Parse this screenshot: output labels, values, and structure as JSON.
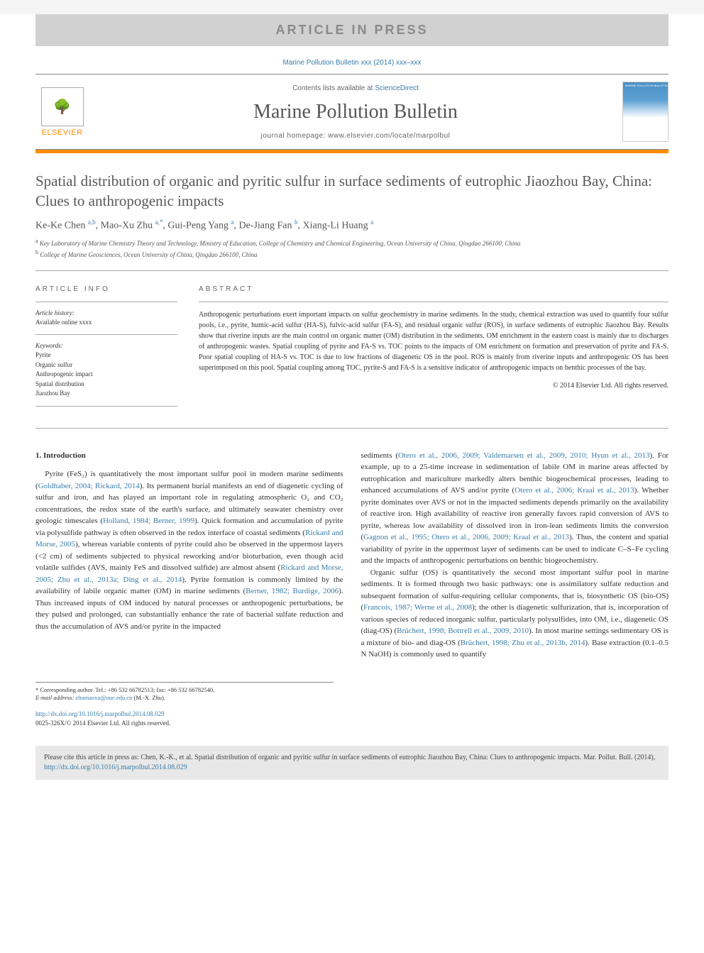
{
  "banner": {
    "text": "ARTICLE IN PRESS"
  },
  "citation_header": "Marine Pollution Bulletin xxx (2014) xxx–xxx",
  "header": {
    "contents_prefix": "Contents lists available at ",
    "contents_link": "ScienceDirect",
    "journal": "Marine Pollution Bulletin",
    "homepage": "journal homepage: www.elsevier.com/locate/marpolbul",
    "publisher": "ELSEVIER"
  },
  "title": "Spatial distribution of organic and pyritic sulfur in surface sediments of eutrophic Jiaozhou Bay, China: Clues to anthropogenic impacts",
  "authors_html": "Ke-Ke Chen <sup>a,b</sup>, Mao-Xu Zhu <sup>a,*</sup>, Gui-Peng Yang <sup>a</sup>, De-Jiang Fan <sup>b</sup>, Xiang-Li Huang <sup>a</sup>",
  "affiliations": {
    "a": "Key Laboratory of Marine Chemistry Theory and Technology, Ministry of Education, College of Chemistry and Chemical Engineering, Ocean University of China, Qingdao 266100, China",
    "b": "College of Marine Geosciences, Ocean University of China, Qingdao 266100, China"
  },
  "article_info": {
    "heading": "ARTICLE INFO",
    "history_label": "Article history:",
    "history_text": "Available online xxxx",
    "keywords_label": "Keywords:",
    "keywords": [
      "Pyrite",
      "Organic sulfur",
      "Anthropogenic impact",
      "Spatial distribution",
      "Jiaozhou Bay"
    ]
  },
  "abstract": {
    "heading": "ABSTRACT",
    "text": "Anthropogenic perturbations exert important impacts on sulfur geochemistry in marine sediments. In the study, chemical extraction was used to quantify four sulfur pools, i.e., pyrite, humic-acid sulfur (HA-S), fulvic-acid sulfur (FA-S), and residual organic sulfur (ROS), in surface sediments of eutrophic Jiaozhou Bay. Results show that riverine inputs are the main control on organic matter (OM) distribution in the sediments. OM enrichment in the eastern coast is mainly due to discharges of anthropogenic wastes. Spatial coupling of pyrite and FA-S vs. TOC points to the impacts of OM enrichment on formation and preservation of pyrite and FA-S. Poor spatial coupling of HA-S vs. TOC is due to low fractions of diagenetic OS in the pool. ROS is mainly from riverine inputs and anthropogenic OS has been superimposed on this pool. Spatial coupling among TOC, pyrite-S and FA-S is a sensitive indicator of anthropogenic impacts on benthic processes of the bay.",
    "copyright": "© 2014 Elsevier Ltd. All rights reserved."
  },
  "body": {
    "section1_heading": "1. Introduction",
    "col1_p1_parts": [
      "Pyrite (FeS₂) is quantitatively the most important sulfur pool in modern marine sediments (",
      "Goldhaber, 2004; Rickard, 2014",
      "). Its permanent burial manifests an end of diagenetic cycling of sulfur and iron, and has played an important role in regulating atmospheric O₂ and CO₂ concentrations, the redox state of the earth's surface, and ultimately seawater chemistry over geologic timescales (",
      "Holland, 1984; Berner, 1999",
      "). Quick formation and accumulation of pyrite via polysulfide pathway is often observed in the redox interface of coastal sediments (",
      "Rickard and Morse, 2005",
      "), whereas variable contents of pyrite could also be observed in the uppermost layers (<2 cm) of sediments subjected to physical reworking and/or bioturbation, even though acid volatile sulfides (AVS, mainly FeS and dissolved sulfide) are almost absent (",
      "Rickard and Morse, 2005; Zhu et al., 2013a; Ding et al., 2014",
      "). Pyrite formation is commonly limited by the availability of labile organic matter (OM) in marine sediments (",
      "Berner, 1982; Burdige, 2006",
      "). Thus increased inputs of OM induced by natural processes or anthropogenic perturbations, be they pulsed and prolonged, can substantially enhance the rate of bacterial sulfate reduction and thus the accumulation of AVS and/or pyrite in the impacted"
    ],
    "col2_p1_parts": [
      "sediments (",
      "Otero et al., 2006, 2009; Valdemarsen et al., 2009, 2010; Hyun et al., 2013",
      "). For example, up to a 25-time increase in sedimentation of labile OM in marine areas affected by eutrophication and mariculture markedly alters benthic biogeochemical processes, leading to enhanced accumulations of AVS and/or pyrite (",
      "Otero et al., 2006; Kraal et al., 2013",
      "). Whether pyrite dominates over AVS or not in the impacted sediments depends primarily on the availability of reactive iron. High availability of reactive iron generally favors rapid conversion of AVS to pyrite, whereas low availability of dissolved iron in iron-lean sediments limits the conversion (",
      "Gagnon et al., 1995; Otero et al., 2006, 2009; Kraal et al., 2013",
      "). Thus, the content and spatial variability of pyrite in the uppermost layer of sediments can be used to indicate C–S–Fe cycling and the impacts of anthropogenic perturbations on benthic biogeochemistry."
    ],
    "col2_p2_parts": [
      "Organic sulfur (OS) is quantitatively the second most important sulfur pool in marine sediments. It is formed through two basic pathways: one is assimilatory sulfate reduction and subsequent formation of sulfur-requiring cellular components, that is, biosynthetic OS (bio-OS) (",
      "Francois, 1987; Werne et al., 2008",
      "); the other is diagenetic sulfurization, that is, incorporation of various species of reduced inorganic sulfur, particularly polysulfides, into OM, i.e., diagenetic OS (diag-OS) (",
      "Brüchert, 1998; Bottrell et al., 2009, 2010",
      "). In most marine settings sedimentary OS is a mixture of bio- and diag-OS (",
      "Brüchert, 1998; Zhu et al., 2013b, 2014",
      "). Base extraction (0.1–0.5 N NaOH) is commonly used to quantify"
    ]
  },
  "footnote": {
    "corresponding": "* Corresponding author. Tel.: +86 532 66782513; fax: +86 532 66782540.",
    "email_label": "E-mail address: ",
    "email": "zhumaoxu@ouc.edu.cn",
    "email_suffix": " (M.-X. Zhu)."
  },
  "doi": {
    "url": "http://dx.doi.org/10.1016/j.marpolbul.2014.08.029",
    "issn_copyright": "0025-326X/© 2014 Elsevier Ltd. All rights reserved."
  },
  "cite_box": {
    "prefix": "Please cite this article in press as: Chen, K.-K., et al. Spatial distribution of organic and pyritic sulfur in surface sediments of eutrophic Jiaozhou Bay, China: Clues to anthropogenic impacts. Mar. Pollut. Bull. (2014), ",
    "link": "http://dx.doi.org/10.1016/j.marpolbul.2014.08.029"
  },
  "colors": {
    "banner_bg": "#d1d1d1",
    "banner_text": "#8a8a8a",
    "accent_orange": "#ff8c00",
    "link_blue": "#3a7ca8",
    "text": "#333333",
    "cite_bg": "#e8e8e8"
  }
}
